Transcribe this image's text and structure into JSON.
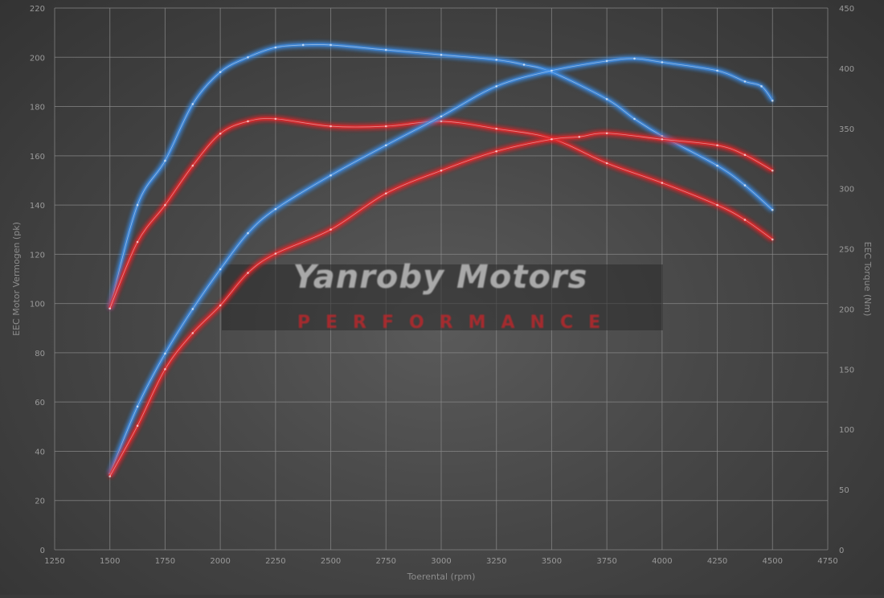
{
  "chart_data": {
    "type": "line",
    "title": "",
    "xlabel": "Toerental (rpm)",
    "ylabel": "EEC Motor Vermogen (pk)",
    "y2label": "EEC Torque (Nm)",
    "xlim": [
      1250,
      4750
    ],
    "ylim": [
      0,
      220
    ],
    "y2lim": [
      0,
      450
    ],
    "xticks": [
      1250,
      1500,
      1750,
      2000,
      2250,
      2500,
      2750,
      3000,
      3250,
      3500,
      3750,
      4000,
      4250,
      4500,
      4750
    ],
    "yticks": [
      0,
      20,
      40,
      60,
      80,
      100,
      120,
      140,
      160,
      180,
      200,
      220
    ],
    "y2ticks": [
      0,
      50,
      100,
      150,
      200,
      250,
      300,
      350,
      400,
      450
    ],
    "grid": true,
    "colors": {
      "tuned": "#3d8ee8",
      "stock": "#e8262a"
    },
    "watermark": {
      "line1": "Yanroby Motors",
      "line2": "PERFORMANCE"
    },
    "series": [
      {
        "axis": "left",
        "color": "#3d8ee8",
        "x": [
          1500,
          1625,
          1750,
          1875,
          2000,
          2125,
          2250,
          2375,
          2500,
          2750,
          3000,
          3250,
          3375,
          3500,
          3750,
          3875,
          4000,
          4250,
          4375,
          4500
        ],
        "y": [
          98,
          140,
          158,
          181,
          194,
          200,
          204,
          205,
          205,
          203,
          201,
          199,
          197,
          194,
          183,
          175,
          168,
          156,
          148,
          138
        ]
      },
      {
        "axis": "left",
        "color": "#e8262a",
        "x": [
          1500,
          1625,
          1750,
          1875,
          2000,
          2125,
          2250,
          2500,
          2750,
          3000,
          3250,
          3500,
          3750,
          4000,
          4250,
          4375,
          4500
        ],
        "y": [
          98,
          125,
          140,
          156,
          169,
          174,
          175,
          172,
          172,
          174,
          171,
          167,
          157,
          149,
          140,
          134,
          126
        ]
      },
      {
        "axis": "right",
        "color": "#3d8ee8",
        "x": [
          1500,
          1625,
          1750,
          1875,
          2000,
          2125,
          2250,
          2500,
          2750,
          3000,
          3250,
          3500,
          3750,
          3875,
          4000,
          4250,
          4375,
          4450,
          4500
        ],
        "y": [
          63,
          119,
          163,
          200,
          233,
          263,
          283,
          311,
          336,
          360,
          385,
          398,
          406,
          408,
          405,
          398,
          389,
          385,
          373
        ]
      },
      {
        "axis": "right",
        "color": "#e8262a",
        "x": [
          1500,
          1625,
          1750,
          1875,
          2000,
          2125,
          2250,
          2500,
          2750,
          3000,
          3250,
          3500,
          3625,
          3750,
          4000,
          4250,
          4375,
          4500
        ],
        "y": [
          61,
          103,
          150,
          180,
          203,
          230,
          246,
          266,
          296,
          315,
          331,
          341,
          343,
          346,
          341,
          336,
          328,
          315
        ]
      }
    ]
  }
}
